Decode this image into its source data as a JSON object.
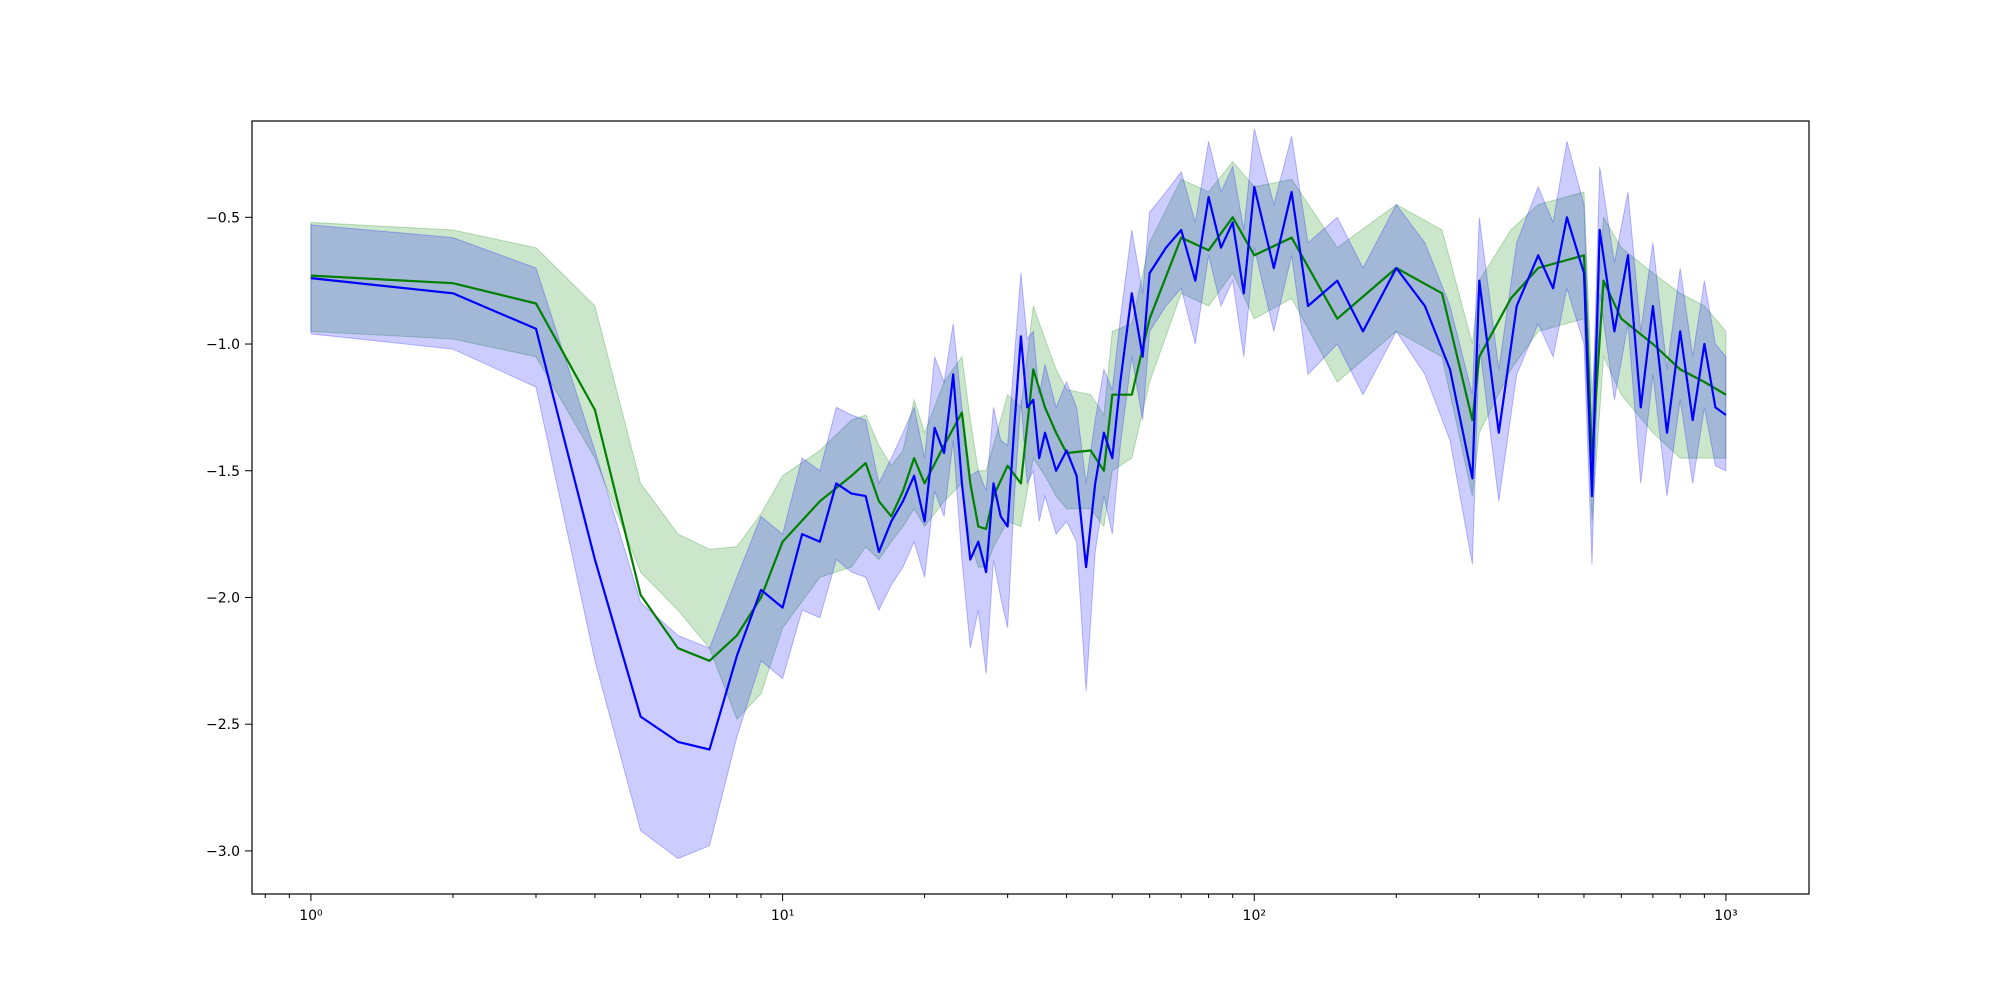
{
  "chart_data": {
    "type": "line",
    "xscale": "log",
    "xlim": [
      0.75,
      1500
    ],
    "ylim": [
      -3.17,
      -0.12
    ],
    "grid": false,
    "legend": "none",
    "x_ticks": [
      {
        "value": 1,
        "label": "10⁰"
      },
      {
        "value": 10,
        "label": "10¹"
      },
      {
        "value": 100,
        "label": "10²"
      },
      {
        "value": 1000,
        "label": "10³"
      }
    ],
    "y_ticks": [
      {
        "value": -0.5,
        "label": "−0.5"
      },
      {
        "value": -1.0,
        "label": "−1.0"
      },
      {
        "value": -1.5,
        "label": "−1.5"
      },
      {
        "value": -2.0,
        "label": "−2.0"
      },
      {
        "value": -2.5,
        "label": "−2.5"
      },
      {
        "value": -3.0,
        "label": "−3.0"
      }
    ],
    "colors": {
      "series_green": "#008000",
      "band_green": "#008000",
      "series_blue": "#0000ff",
      "band_blue": "#0000ff",
      "band_opacity": 0.2
    },
    "series": [
      {
        "color": "green",
        "x": [
          1,
          2,
          3,
          4,
          5,
          6,
          7,
          8,
          9,
          10,
          12,
          14,
          15,
          16,
          17,
          18,
          19,
          20,
          22,
          24,
          25,
          26,
          27,
          28,
          30,
          32,
          34,
          36,
          38,
          40,
          45,
          48,
          50,
          55,
          60,
          70,
          80,
          90,
          100,
          120,
          150,
          200,
          250,
          290,
          300,
          350,
          400,
          500,
          520,
          550,
          600,
          700,
          800,
          900,
          1000
        ],
        "y": [
          -0.73,
          -0.76,
          -0.84,
          -1.26,
          -1.99,
          -2.2,
          -2.25,
          -2.15,
          -2.0,
          -1.78,
          -1.62,
          -1.52,
          -1.47,
          -1.62,
          -1.68,
          -1.58,
          -1.45,
          -1.55,
          -1.4,
          -1.27,
          -1.55,
          -1.72,
          -1.73,
          -1.6,
          -1.48,
          -1.55,
          -1.1,
          -1.25,
          -1.35,
          -1.43,
          -1.42,
          -1.5,
          -1.2,
          -1.2,
          -0.9,
          -0.58,
          -0.63,
          -0.5,
          -0.65,
          -0.58,
          -0.9,
          -0.7,
          -0.8,
          -1.3,
          -1.05,
          -0.82,
          -0.7,
          -0.65,
          -1.45,
          -0.75,
          -0.9,
          -1.0,
          -1.1,
          -1.15,
          -1.2
        ],
        "lower": [
          -0.95,
          -0.98,
          -1.05,
          -1.45,
          -1.9,
          -2.05,
          -2.2,
          -2.48,
          -2.38,
          -2.12,
          -1.92,
          -1.88,
          -1.8,
          -1.85,
          -1.78,
          -1.72,
          -1.65,
          -1.72,
          -1.62,
          -1.55,
          -1.78,
          -1.88,
          -1.88,
          -1.8,
          -1.7,
          -1.72,
          -1.45,
          -1.52,
          -1.6,
          -1.65,
          -1.65,
          -1.72,
          -1.5,
          -1.45,
          -1.15,
          -0.8,
          -0.85,
          -0.72,
          -0.9,
          -0.82,
          -1.15,
          -0.95,
          -1.05,
          -1.6,
          -1.35,
          -1.1,
          -0.95,
          -0.9,
          -1.7,
          -1.05,
          -1.2,
          -1.35,
          -1.45,
          -1.45,
          -1.45
        ],
        "upper": [
          -0.52,
          -0.55,
          -0.62,
          -0.85,
          -1.55,
          -1.75,
          -1.81,
          -1.8,
          -1.67,
          -1.52,
          -1.42,
          -1.3,
          -1.28,
          -1.4,
          -1.48,
          -1.42,
          -1.22,
          -1.35,
          -1.15,
          -1.05,
          -1.3,
          -1.5,
          -1.5,
          -1.4,
          -1.2,
          -1.25,
          -0.85,
          -0.98,
          -1.1,
          -1.18,
          -1.2,
          -1.28,
          -0.95,
          -0.92,
          -0.6,
          -0.35,
          -0.4,
          -0.28,
          -0.38,
          -0.35,
          -0.62,
          -0.45,
          -0.55,
          -1.0,
          -0.75,
          -0.55,
          -0.45,
          -0.4,
          -1.2,
          -0.5,
          -0.62,
          -0.72,
          -0.8,
          -0.85,
          -0.95
        ]
      },
      {
        "color": "blue",
        "x": [
          1,
          2,
          3,
          4,
          5,
          6,
          7,
          8,
          9,
          10,
          11,
          12,
          13,
          14,
          15,
          16,
          17,
          18,
          19,
          20,
          21,
          22,
          23,
          24,
          25,
          26,
          27,
          28,
          29,
          30,
          31,
          32,
          33,
          34,
          35,
          36,
          38,
          40,
          42,
          44,
          46,
          48,
          50,
          52,
          55,
          58,
          60,
          65,
          70,
          75,
          80,
          85,
          90,
          95,
          100,
          110,
          120,
          130,
          150,
          170,
          200,
          230,
          260,
          290,
          300,
          330,
          360,
          400,
          430,
          460,
          500,
          520,
          540,
          580,
          620,
          660,
          700,
          750,
          800,
          850,
          900,
          950,
          1000
        ],
        "y": [
          -0.74,
          -0.8,
          -0.94,
          -1.85,
          -2.47,
          -2.57,
          -2.6,
          -2.23,
          -1.97,
          -2.04,
          -1.75,
          -1.78,
          -1.55,
          -1.59,
          -1.6,
          -1.82,
          -1.7,
          -1.62,
          -1.52,
          -1.7,
          -1.33,
          -1.43,
          -1.12,
          -1.55,
          -1.85,
          -1.78,
          -1.9,
          -1.55,
          -1.68,
          -1.72,
          -1.32,
          -0.97,
          -1.25,
          -1.22,
          -1.45,
          -1.35,
          -1.5,
          -1.42,
          -1.52,
          -1.88,
          -1.55,
          -1.35,
          -1.45,
          -1.15,
          -0.8,
          -1.05,
          -0.72,
          -0.62,
          -0.55,
          -0.75,
          -0.42,
          -0.62,
          -0.52,
          -0.8,
          -0.38,
          -0.7,
          -0.4,
          -0.85,
          -0.75,
          -0.95,
          -0.7,
          -0.85,
          -1.1,
          -1.53,
          -0.75,
          -1.35,
          -0.85,
          -0.65,
          -0.78,
          -0.5,
          -0.72,
          -1.6,
          -0.55,
          -0.95,
          -0.65,
          -1.25,
          -0.85,
          -1.35,
          -0.95,
          -1.3,
          -1.0,
          -1.25,
          -1.28
        ],
        "lower": [
          -0.96,
          -1.02,
          -1.17,
          -2.25,
          -2.92,
          -3.03,
          -2.98,
          -2.55,
          -2.25,
          -2.32,
          -2.05,
          -2.08,
          -1.85,
          -1.9,
          -1.92,
          -2.05,
          -1.95,
          -1.88,
          -1.78,
          -1.92,
          -1.58,
          -1.68,
          -1.38,
          -1.85,
          -2.2,
          -2.05,
          -2.3,
          -1.85,
          -2.0,
          -2.12,
          -1.6,
          -1.22,
          -1.55,
          -1.5,
          -1.7,
          -1.6,
          -1.75,
          -1.7,
          -1.78,
          -2.37,
          -1.82,
          -1.6,
          -1.75,
          -1.4,
          -1.05,
          -1.3,
          -0.95,
          -0.85,
          -0.78,
          -1.0,
          -0.65,
          -0.85,
          -0.75,
          -1.05,
          -0.62,
          -0.95,
          -0.65,
          -1.12,
          -1.0,
          -1.2,
          -0.95,
          -1.12,
          -1.38,
          -1.87,
          -1.0,
          -1.62,
          -1.12,
          -0.92,
          -1.05,
          -0.78,
          -1.0,
          -1.87,
          -0.8,
          -1.22,
          -0.92,
          -1.55,
          -1.12,
          -1.6,
          -1.22,
          -1.55,
          -1.25,
          -1.48,
          -1.5
        ],
        "upper": [
          -0.53,
          -0.58,
          -0.7,
          -1.42,
          -2.02,
          -2.15,
          -2.2,
          -1.92,
          -1.68,
          -1.75,
          -1.45,
          -1.5,
          -1.25,
          -1.28,
          -1.3,
          -1.55,
          -1.45,
          -1.35,
          -1.25,
          -1.45,
          -1.05,
          -1.15,
          -0.92,
          -1.25,
          -1.52,
          -1.5,
          -1.58,
          -1.25,
          -1.38,
          -1.4,
          -1.05,
          -0.72,
          -0.98,
          -0.95,
          -1.2,
          -1.08,
          -1.25,
          -1.15,
          -1.25,
          -1.55,
          -1.3,
          -1.1,
          -1.18,
          -0.9,
          -0.55,
          -0.8,
          -0.48,
          -0.4,
          -0.32,
          -0.52,
          -0.2,
          -0.4,
          -0.3,
          -0.55,
          -0.15,
          -0.45,
          -0.18,
          -0.6,
          -0.5,
          -0.7,
          -0.45,
          -0.6,
          -0.85,
          -1.2,
          -0.5,
          -1.1,
          -0.6,
          -0.38,
          -0.52,
          -0.2,
          -0.45,
          -1.35,
          -0.3,
          -0.68,
          -0.4,
          -0.95,
          -0.6,
          -1.1,
          -0.7,
          -1.05,
          -0.75,
          -1.0,
          -1.05
        ]
      }
    ]
  }
}
